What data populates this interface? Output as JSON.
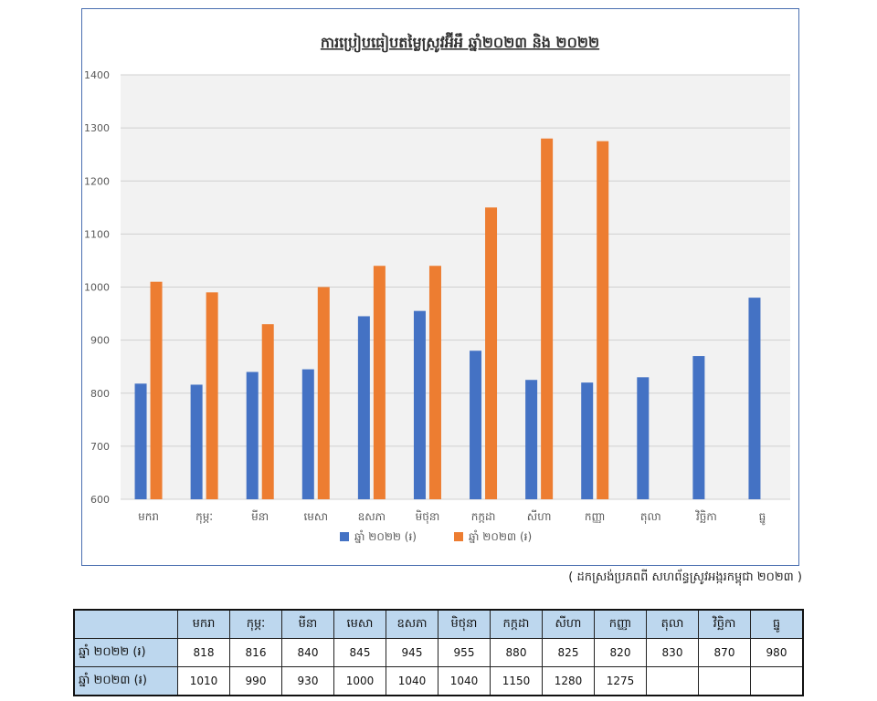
{
  "chart_data": {
    "type": "bar",
    "title": "ការប្រៀបធៀបតម្លៃស្រូវអ៊ីអឹ ឆ្នាំ២០២៣ និង ២០២២",
    "categories": [
      "មករា",
      "កុម្ភៈ",
      "មីនា",
      "មេសា",
      "ឧសភា",
      "មិថុនា",
      "កក្កដា",
      "សីហា",
      "កញ្ញា",
      "តុលា",
      "វិច្ឆិកា",
      "ធ្នូ"
    ],
    "series": [
      {
        "name": "ឆ្នាំ ២០២២ (៛)",
        "color": "#4472c4",
        "values": [
          818,
          816,
          840,
          845,
          945,
          955,
          880,
          825,
          820,
          830,
          870,
          980
        ]
      },
      {
        "name": "ឆ្នាំ ២០២៣ (៛)",
        "color": "#ed7d31",
        "values": [
          1010,
          990,
          930,
          1000,
          1040,
          1040,
          1150,
          1280,
          1275,
          null,
          null,
          null
        ]
      }
    ],
    "ylim": [
      600,
      1400
    ],
    "yticks": [
      600,
      700,
      800,
      900,
      1000,
      1100,
      1200,
      1300,
      1400
    ],
    "grid": true,
    "legend": "bottom",
    "plot_bg": "#f2f2f2"
  },
  "source_note": "( ដកស្រង់ប្រភពពី សហព័ន្ធស្រូវអង្ករកម្ពុជា ២០២៣ )",
  "table": {
    "rows": [
      {
        "label": "ឆ្នាំ ២០២២ (៛)",
        "cells": [
          "818",
          "816",
          "840",
          "845",
          "945",
          "955",
          "880",
          "825",
          "820",
          "830",
          "870",
          "980"
        ]
      },
      {
        "label": "ឆ្នាំ ២០២៣ (៛)",
        "cells": [
          "1010",
          "990",
          "930",
          "1000",
          "1040",
          "1040",
          "1150",
          "1280",
          "1275",
          "",
          "",
          ""
        ]
      }
    ]
  }
}
